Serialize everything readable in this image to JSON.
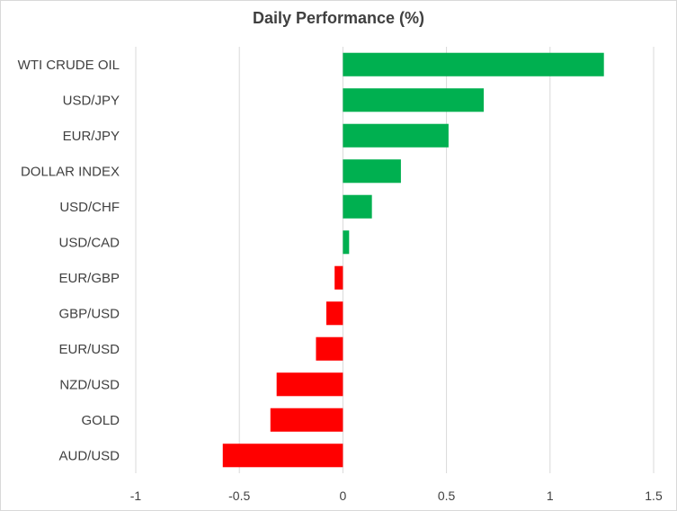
{
  "chart_data": {
    "type": "bar",
    "orientation": "horizontal",
    "title": "Daily Performance (%)",
    "xlabel": "",
    "ylabel": "",
    "categories": [
      "WTI CRUDE OIL",
      "USD/JPY",
      "EUR/JPY",
      "DOLLAR INDEX",
      "USD/CHF",
      "USD/CAD",
      "EUR/GBP",
      "GBP/USD",
      "EUR/USD",
      "NZD/USD",
      "GOLD",
      "AUD/USD"
    ],
    "values": [
      1.26,
      0.68,
      0.51,
      0.28,
      0.14,
      0.03,
      -0.04,
      -0.08,
      -0.13,
      -0.32,
      -0.35,
      -0.58
    ],
    "xlim": [
      -1,
      1.5
    ],
    "xticks": [
      -1,
      -0.5,
      0,
      0.5,
      1,
      1.5
    ],
    "xtick_labels": [
      "-1",
      "-0.5",
      "0",
      "0.5",
      "1",
      "1.5"
    ],
    "grid": "vertical",
    "legend": "none",
    "colors": {
      "positive": "#00b050",
      "negative": "#ff0000",
      "grid": "#d9d9d9",
      "text": "#404040"
    }
  }
}
